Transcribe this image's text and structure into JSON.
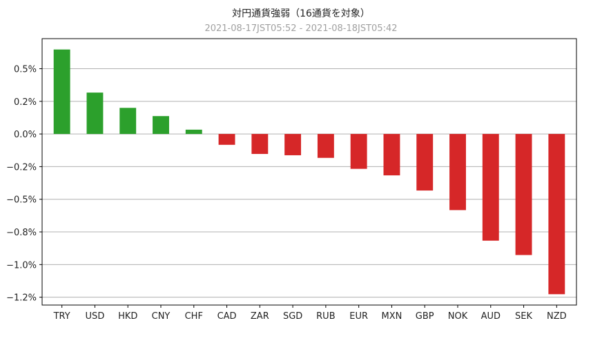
{
  "chart_data": {
    "type": "bar",
    "title": "対円通貨強弱（16通貨を対象）",
    "subtitle": "2021-08-17JST05:52 - 2021-08-18JST05:42",
    "xlabel": "",
    "ylabel": "",
    "categories": [
      "TRY",
      "USD",
      "HKD",
      "CNY",
      "CHF",
      "CAD",
      "ZAR",
      "SGD",
      "RUB",
      "EUR",
      "MXN",
      "GBP",
      "NOK",
      "AUD",
      "SEK",
      "NZD"
    ],
    "values": [
      0.647,
      0.317,
      0.2,
      0.137,
      0.033,
      -0.083,
      -0.153,
      -0.163,
      -0.183,
      -0.267,
      -0.317,
      -0.433,
      -0.583,
      -0.817,
      -0.927,
      -1.227
    ],
    "ylim": [
      -1.31,
      0.73
    ],
    "yticks": [
      0.5,
      0.25,
      0.0,
      -0.25,
      -0.5,
      -0.75,
      -1.0,
      -1.25
    ],
    "ytick_labels": [
      "0.5%",
      "0.2%",
      "0.0%",
      "−0.2%",
      "−0.5%",
      "−0.8%",
      "−1.0%",
      "−1.2%"
    ],
    "grid": true,
    "colors": {
      "positive": "#2ca02c",
      "negative": "#d62728",
      "grid": "#b0b0b0",
      "axis": "#000000"
    }
  }
}
